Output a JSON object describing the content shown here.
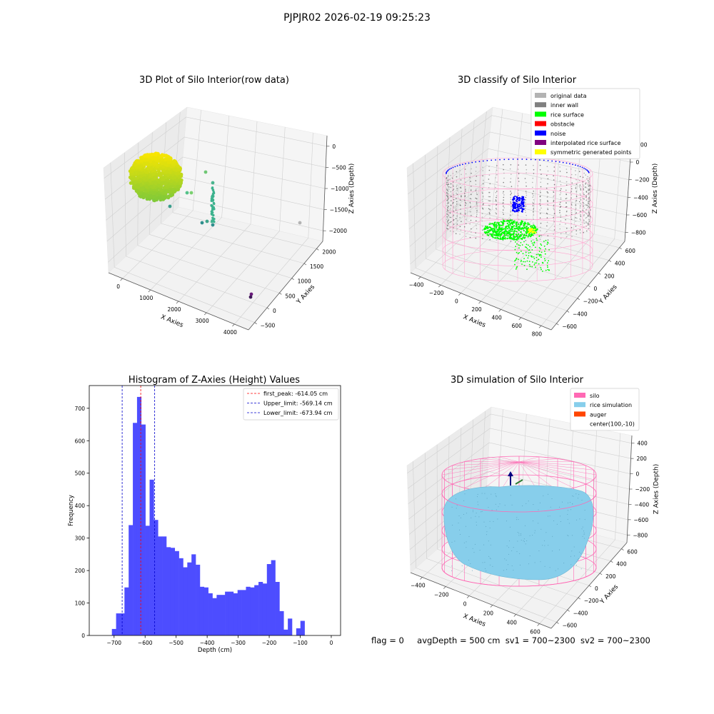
{
  "suptitle": "PJPJR02 2026-02-19 09:25:23",
  "status": {
    "flag": "flag = 0",
    "avg_depth": "avgDepth = 500 cm",
    "sv1": "sv1 = 700~2300",
    "sv2": "sv2 = 700~2300"
  },
  "colors": {
    "histogram_bar": "#4d4dff",
    "first_peak_line": "#ff0000",
    "limit_line": "#0000cc",
    "original_data": "#b3b3b3",
    "inner_wall": "#808080",
    "rice_surface": "#00ff00",
    "obstacle": "#ff0000",
    "noise": "#0000ff",
    "interpolated_rice_surface": "#800080",
    "symmetric_generated_points": "#ffff00",
    "silo": "#ff69b4",
    "rice_simulation": "#87ceeb",
    "auger": "#ff4500"
  },
  "chart_data": [
    {
      "id": "raw",
      "type": "scatter",
      "title": "3D Plot of Silo Interior(row data)",
      "xlabel": "X Axies",
      "ylabel": "Y Axies",
      "zlabel": "Z Axies (Depth)",
      "xticks": [
        "0",
        "1000",
        "2000",
        "3000",
        "4000"
      ],
      "yticks": [
        "−500",
        "0",
        "500",
        "1000",
        "1500",
        "2000"
      ],
      "zticks": [
        "0",
        "−500",
        "−1000",
        "−1500",
        "−2000"
      ],
      "xlim": [
        -500,
        4000
      ],
      "ylim": [
        -700,
        2200
      ],
      "zlim": [
        -2300,
        100
      ],
      "colormap": "viridis"
    },
    {
      "id": "classify",
      "type": "scatter",
      "title": "3D classify of Silo Interior",
      "xlabel": "X Axies",
      "ylabel": "Y Axies",
      "zlabel": "Z Axies (Depth)",
      "xticks": [
        "−400",
        "−200",
        "0",
        "200",
        "400",
        "600",
        "800"
      ],
      "yticks": [
        "−600",
        "−400",
        "−200",
        "0",
        "200",
        "400",
        "600"
      ],
      "zticks": [
        "200",
        "0",
        "−200",
        "−400",
        "−600",
        "−800"
      ],
      "zticks_top_partial": "00",
      "xlim": [
        -500,
        800
      ],
      "ylim": [
        -700,
        700
      ],
      "zlim": [
        -900,
        300
      ],
      "legend_position": "upper-right",
      "legend": [
        {
          "label": "original data",
          "color": "#b3b3b3"
        },
        {
          "label": "inner wall",
          "color": "#808080"
        },
        {
          "label": "rice surface",
          "color": "#00ff00"
        },
        {
          "label": "obstacle",
          "color": "#ff0000"
        },
        {
          "label": "noise",
          "color": "#0000ff"
        },
        {
          "label": "interpolated rice surface",
          "color": "#800080"
        },
        {
          "label": "symmetric generated points",
          "color": "#ffff00"
        }
      ]
    },
    {
      "id": "histogram",
      "type": "bar",
      "title": "Histogram of Z-Axies (Height) Values",
      "xlabel": "Depth (cm)",
      "ylabel": "Frequency",
      "xlim": [
        -780,
        30
      ],
      "ylim": [
        0,
        770
      ],
      "xticks": [
        -700,
        -600,
        -500,
        -400,
        -300,
        -200,
        -100,
        0
      ],
      "yticks": [
        0,
        100,
        200,
        300,
        400,
        500,
        600,
        700
      ],
      "bin_width": 13.5,
      "bin_start": -707,
      "values": [
        20,
        68,
        68,
        148,
        340,
        655,
        735,
        650,
        338,
        480,
        356,
        305,
        305,
        272,
        270,
        260,
        238,
        210,
        225,
        250,
        218,
        150,
        148,
        130,
        115,
        125,
        125,
        135,
        135,
        130,
        140,
        140,
        150,
        148,
        155,
        165,
        160,
        220,
        232,
        165,
        75,
        18,
        52,
        0,
        22,
        45
      ],
      "vlines": [
        {
          "label": "first_peak: -614.05 cm",
          "x": -614.05,
          "color": "#ff0000"
        },
        {
          "label": "Upper_limit: -569.14 cm",
          "x": -569.14,
          "color": "#0000cc"
        },
        {
          "label": "Lower_limit: -673.94 cm",
          "x": -673.94,
          "color": "#0000cc"
        }
      ],
      "legend_position": "upper-right"
    },
    {
      "id": "simulation",
      "type": "scatter",
      "title": "3D simulation of Silo Interior",
      "xlabel": "X Axies",
      "ylabel": "Y Axies",
      "zlabel": "Z Axies (Depth)",
      "xticks": [
        "−400",
        "−200",
        "0",
        "200",
        "400",
        "600"
      ],
      "yticks": [
        "−600",
        "−400",
        "−200",
        "0",
        "200",
        "400",
        "600"
      ],
      "zticks": [
        "400",
        "200",
        "0",
        "−200",
        "−400",
        "−600",
        "−800"
      ],
      "xlim": [
        -500,
        700
      ],
      "ylim": [
        -700,
        700
      ],
      "zlim": [
        -900,
        450
      ],
      "legend_position": "upper-right",
      "legend": [
        {
          "label": "silo",
          "color": "#ff69b4"
        },
        {
          "label": "rice simulation",
          "color": "#87ceeb"
        },
        {
          "label": "auger",
          "color": "#ff4500"
        },
        {
          "label": "center(100,-10)",
          "color": ""
        }
      ]
    }
  ]
}
